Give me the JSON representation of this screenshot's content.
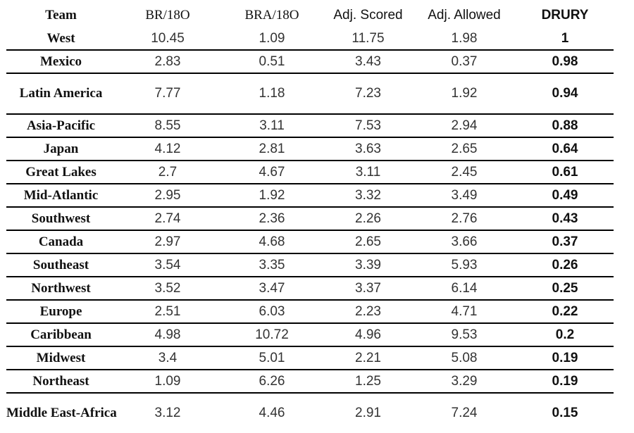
{
  "headers": {
    "team": "Team",
    "br": "BR/18O",
    "bra": "BRA/18O",
    "adj_scored": "Adj. Scored",
    "adj_allowed": "Adj. Allowed",
    "drury": "DRURY"
  },
  "rows": [
    {
      "team": "West",
      "br": "10.45",
      "bra": "1.09",
      "adj_scored": "11.75",
      "adj_allowed": "1.98",
      "drury": "1"
    },
    {
      "team": "Mexico",
      "br": "2.83",
      "bra": "0.51",
      "adj_scored": "3.43",
      "adj_allowed": "0.37",
      "drury": "0.98"
    },
    {
      "team": "Latin America",
      "br": "7.77",
      "bra": "1.18",
      "adj_scored": "7.23",
      "adj_allowed": "1.92",
      "drury": "0.94"
    },
    {
      "team": "Asia-Pacific",
      "br": "8.55",
      "bra": "3.11",
      "adj_scored": "7.53",
      "adj_allowed": "2.94",
      "drury": "0.88"
    },
    {
      "team": "Japan",
      "br": "4.12",
      "bra": "2.81",
      "adj_scored": "3.63",
      "adj_allowed": "2.65",
      "drury": "0.64"
    },
    {
      "team": "Great Lakes",
      "br": "2.7",
      "bra": "4.67",
      "adj_scored": "3.11",
      "adj_allowed": "2.45",
      "drury": "0.61"
    },
    {
      "team": "Mid-Atlantic",
      "br": "2.95",
      "bra": "1.92",
      "adj_scored": "3.32",
      "adj_allowed": "3.49",
      "drury": "0.49"
    },
    {
      "team": "Southwest",
      "br": "2.74",
      "bra": "2.36",
      "adj_scored": "2.26",
      "adj_allowed": "2.76",
      "drury": "0.43"
    },
    {
      "team": "Canada",
      "br": "2.97",
      "bra": "4.68",
      "adj_scored": "2.65",
      "adj_allowed": "3.66",
      "drury": "0.37"
    },
    {
      "team": "Southeast",
      "br": "3.54",
      "bra": "3.35",
      "adj_scored": "3.39",
      "adj_allowed": "5.93",
      "drury": "0.26"
    },
    {
      "team": "Northwest",
      "br": "3.52",
      "bra": "3.47",
      "adj_scored": "3.37",
      "adj_allowed": "6.14",
      "drury": "0.25"
    },
    {
      "team": "Europe",
      "br": "2.51",
      "bra": "6.03",
      "adj_scored": "2.23",
      "adj_allowed": "4.71",
      "drury": "0.22"
    },
    {
      "team": "Caribbean",
      "br": "4.98",
      "bra": "10.72",
      "adj_scored": "4.96",
      "adj_allowed": "9.53",
      "drury": "0.2"
    },
    {
      "team": "Midwest",
      "br": "3.4",
      "bra": "5.01",
      "adj_scored": "2.21",
      "adj_allowed": "5.08",
      "drury": "0.19"
    },
    {
      "team": "Northeast",
      "br": "1.09",
      "bra": "6.26",
      "adj_scored": "1.25",
      "adj_allowed": "3.29",
      "drury": "0.19"
    },
    {
      "team": "Middle East-Africa",
      "br": "3.12",
      "bra": "4.46",
      "adj_scored": "2.91",
      "adj_allowed": "7.24",
      "drury": "0.15"
    }
  ]
}
